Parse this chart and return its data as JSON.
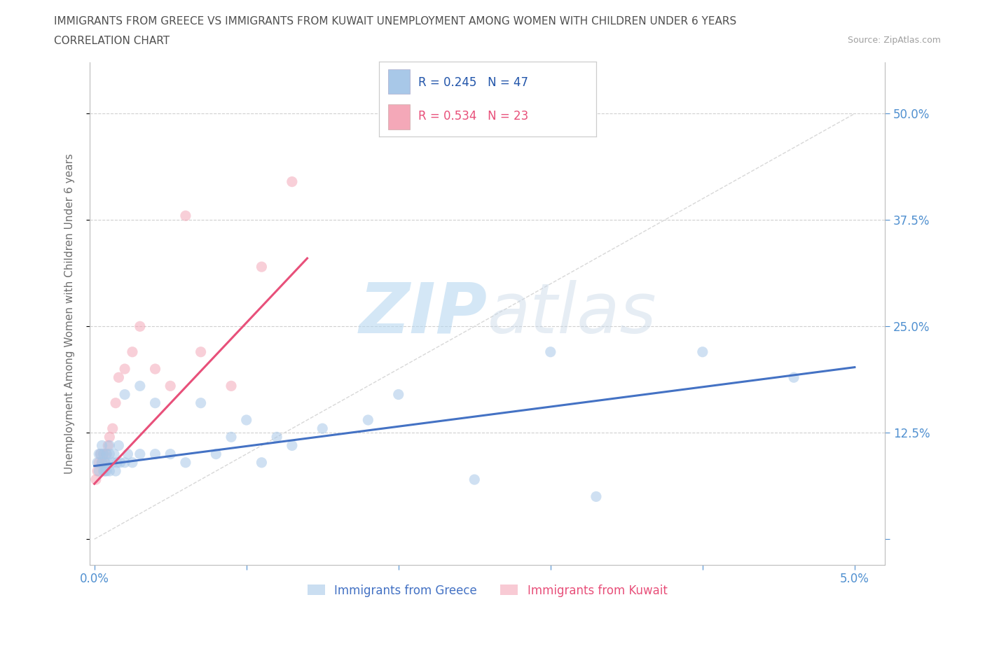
{
  "title_line1": "IMMIGRANTS FROM GREECE VS IMMIGRANTS FROM KUWAIT UNEMPLOYMENT AMONG WOMEN WITH CHILDREN UNDER 6 YEARS",
  "title_line2": "CORRELATION CHART",
  "source": "Source: ZipAtlas.com",
  "ylabel": "Unemployment Among Women with Children Under 6 years",
  "xlim": [
    -0.0003,
    0.052
  ],
  "ylim": [
    -0.03,
    0.56
  ],
  "greece_color": "#a8c8e8",
  "kuwait_color": "#f4a8b8",
  "greece_line_color": "#4472c4",
  "kuwait_line_color": "#e8507a",
  "greece_label": "Immigrants from Greece",
  "kuwait_label": "Immigrants from Kuwait",
  "legend_R_greece": "R = 0.245   N = 47",
  "legend_R_kuwait": "R = 0.534   N = 23",
  "legend_text_color": "#2255aa",
  "greece_scatter_x": [
    0.0002,
    0.0003,
    0.0003,
    0.0004,
    0.0005,
    0.0005,
    0.0006,
    0.0006,
    0.0007,
    0.0007,
    0.0008,
    0.0008,
    0.0009,
    0.001,
    0.001,
    0.001,
    0.0012,
    0.0013,
    0.0014,
    0.0015,
    0.0016,
    0.0017,
    0.002,
    0.002,
    0.0022,
    0.0025,
    0.003,
    0.003,
    0.004,
    0.004,
    0.005,
    0.006,
    0.007,
    0.008,
    0.009,
    0.01,
    0.011,
    0.012,
    0.013,
    0.015,
    0.018,
    0.02,
    0.025,
    0.03,
    0.033,
    0.04,
    0.046
  ],
  "greece_scatter_y": [
    0.09,
    0.1,
    0.08,
    0.1,
    0.09,
    0.11,
    0.08,
    0.1,
    0.08,
    0.09,
    0.08,
    0.1,
    0.09,
    0.08,
    0.1,
    0.11,
    0.09,
    0.1,
    0.08,
    0.09,
    0.11,
    0.09,
    0.09,
    0.17,
    0.1,
    0.09,
    0.18,
    0.1,
    0.16,
    0.1,
    0.1,
    0.09,
    0.16,
    0.1,
    0.12,
    0.14,
    0.09,
    0.12,
    0.11,
    0.13,
    0.14,
    0.17,
    0.07,
    0.22,
    0.05,
    0.22,
    0.19
  ],
  "kuwait_scatter_x": [
    0.0001,
    0.0002,
    0.0003,
    0.0004,
    0.0005,
    0.0006,
    0.0007,
    0.0008,
    0.0009,
    0.001,
    0.0012,
    0.0014,
    0.0016,
    0.002,
    0.0025,
    0.003,
    0.004,
    0.005,
    0.006,
    0.007,
    0.009,
    0.011,
    0.013
  ],
  "kuwait_scatter_y": [
    0.07,
    0.08,
    0.09,
    0.1,
    0.09,
    0.1,
    0.09,
    0.1,
    0.11,
    0.12,
    0.13,
    0.16,
    0.19,
    0.2,
    0.22,
    0.25,
    0.2,
    0.18,
    0.38,
    0.22,
    0.18,
    0.32,
    0.42
  ],
  "greece_trend_x": [
    0.0,
    0.05
  ],
  "greece_trend_y": [
    0.086,
    0.202
  ],
  "kuwait_trend_x": [
    0.0,
    0.014
  ],
  "kuwait_trend_y": [
    0.065,
    0.33
  ],
  "diag_line_color": "#d8d8d8",
  "watermark_color": "#d0e5f5",
  "background_color": "#ffffff",
  "grid_color": "#d0d0d0",
  "tick_color": "#5090d0",
  "title_color": "#505050",
  "axis_label_color": "#707070",
  "source_color": "#a0a0a0"
}
